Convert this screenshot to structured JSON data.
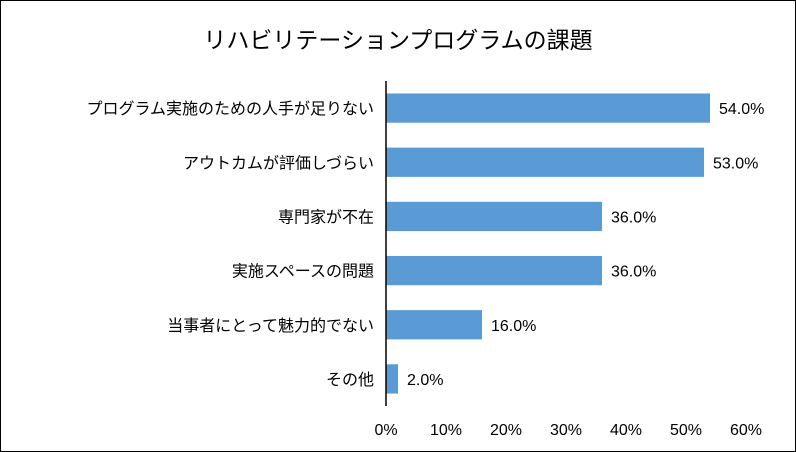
{
  "chart_data": {
    "type": "bar",
    "orientation": "horizontal",
    "title": "リハビリテーションプログラムの課題",
    "categories": [
      "プログラム実施のための人手が足りない",
      "アウトカムが評価しづらい",
      "専門家が不在",
      "実施スペースの問題",
      "当事者にとって魅力的でない",
      "その他"
    ],
    "values": [
      54.0,
      53.0,
      36.0,
      36.0,
      16.0,
      2.0
    ],
    "value_labels": [
      "54.0%",
      "53.0%",
      "36.0%",
      "36.0%",
      "16.0%",
      "2.0%"
    ],
    "xlim": [
      0,
      60
    ],
    "xticks": [
      0,
      10,
      20,
      30,
      40,
      50,
      60
    ],
    "xtick_labels": [
      "0%",
      "10%",
      "20%",
      "30%",
      "40%",
      "50%",
      "60%"
    ],
    "grid": false,
    "bar_color": "#5B9BD5",
    "xlabel": "",
    "ylabel": ""
  }
}
